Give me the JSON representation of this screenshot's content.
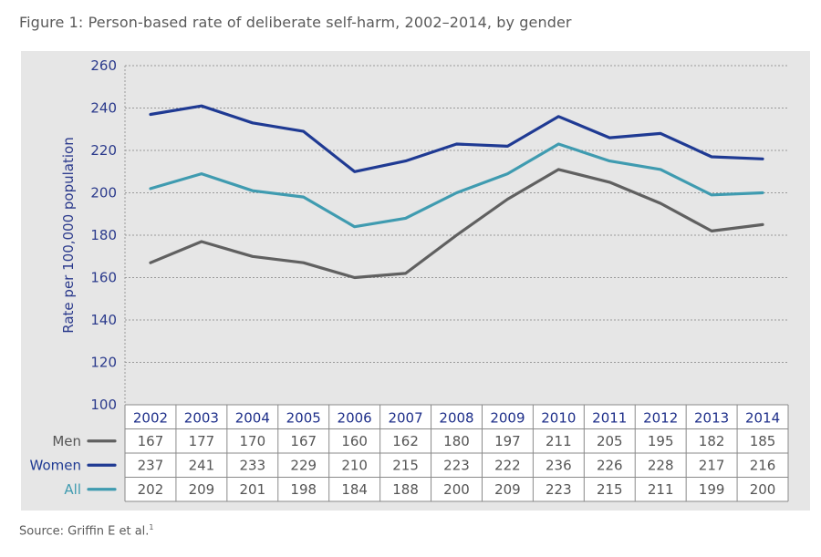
{
  "title": "Figure 1: Person-based rate of deliberate self-harm, 2002–2014, by gender",
  "source": "Source: Griffin E et al.",
  "source_ref": "1",
  "chart_data": {
    "type": "line",
    "ylabel": "Rate per 100,000 population",
    "ylim": [
      100,
      260
    ],
    "yticks": [
      100,
      120,
      140,
      160,
      180,
      200,
      220,
      240,
      260
    ],
    "grid": true,
    "categories": [
      "2002",
      "2003",
      "2004",
      "2005",
      "2006",
      "2007",
      "2008",
      "2009",
      "2010",
      "2011",
      "2012",
      "2013",
      "2014"
    ],
    "series": [
      {
        "name": "Men",
        "color": "#606060",
        "values": [
          167,
          177,
          170,
          167,
          160,
          162,
          180,
          197,
          211,
          205,
          195,
          182,
          185
        ]
      },
      {
        "name": "Women",
        "color": "#1f3a93",
        "values": [
          237,
          241,
          233,
          229,
          210,
          215,
          223,
          222,
          236,
          226,
          228,
          217,
          216
        ]
      },
      {
        "name": "All",
        "color": "#3f9bb0",
        "values": [
          202,
          209,
          201,
          198,
          184,
          188,
          200,
          209,
          223,
          215,
          211,
          199,
          200
        ]
      }
    ]
  }
}
